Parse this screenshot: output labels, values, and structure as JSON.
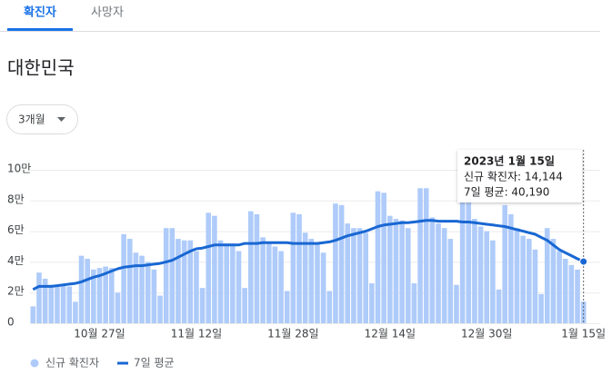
{
  "tabs": [
    "확진자",
    "사망자"
  ],
  "region": "대한민국",
  "range_selector": "3개월",
  "chart_data": {
    "type": "bar",
    "categories": [
      null,
      null,
      null,
      null,
      null,
      null,
      null,
      null,
      null,
      null,
      null,
      "10월 27일",
      null,
      null,
      null,
      null,
      null,
      null,
      null,
      null,
      null,
      null,
      null,
      null,
      null,
      null,
      null,
      "11월 12일",
      null,
      null,
      null,
      null,
      null,
      null,
      null,
      null,
      null,
      null,
      null,
      null,
      null,
      null,
      null,
      "11월 28일",
      null,
      null,
      null,
      null,
      null,
      null,
      null,
      null,
      null,
      null,
      null,
      null,
      null,
      null,
      null,
      "12월 14일",
      null,
      null,
      null,
      null,
      null,
      null,
      null,
      null,
      null,
      null,
      null,
      null,
      null,
      null,
      null,
      "12월 30일",
      null,
      null,
      null,
      null,
      null,
      null,
      null,
      null,
      null,
      null,
      null,
      null,
      null,
      null,
      null,
      "1월 15일"
    ],
    "series": [
      {
        "name": "신규 확진자",
        "type": "bar",
        "color": "#aecbfa",
        "values": [
          11000,
          33000,
          29000,
          25000,
          24000,
          25000,
          24000,
          14000,
          44000,
          42000,
          35000,
          36000,
          37000,
          36000,
          20000,
          58000,
          55000,
          46000,
          44000,
          40000,
          35000,
          18000,
          62000,
          62000,
          55000,
          54000,
          54000,
          47000,
          23000,
          72000,
          70000,
          54000,
          52000,
          52000,
          47000,
          23000,
          73000,
          71000,
          56000,
          53000,
          50000,
          47000,
          21000,
          72000,
          71000,
          59000,
          55000,
          52000,
          46000,
          21000,
          78000,
          77000,
          65000,
          62000,
          62000,
          59000,
          26000,
          86000,
          85000,
          70000,
          68000,
          67000,
          62000,
          26000,
          88000,
          88000,
          69000,
          65000,
          62000,
          55000,
          25000,
          85000,
          82000,
          68000,
          63000,
          60000,
          54000,
          22000,
          77000,
          71000,
          62000,
          57000,
          55000,
          48000,
          19000,
          62000,
          55000,
          47000,
          42000,
          38000,
          35000,
          14144
        ]
      },
      {
        "name": "7일 평균",
        "type": "line",
        "color": "#1967d2",
        "values": [
          22000,
          24000,
          24000,
          24000,
          24500,
          25000,
          25500,
          26000,
          27000,
          28500,
          30000,
          31000,
          32500,
          34000,
          35500,
          36500,
          37000,
          37500,
          37500,
          38000,
          38500,
          39000,
          40000,
          41000,
          43000,
          45000,
          47000,
          48500,
          49000,
          50000,
          51000,
          51000,
          51000,
          51000,
          51000,
          52000,
          52000,
          52000,
          52500,
          52500,
          52500,
          52500,
          52500,
          52000,
          52000,
          52000,
          52000,
          52000,
          52500,
          53000,
          54000,
          55500,
          57000,
          58000,
          59000,
          60000,
          61500,
          63000,
          64000,
          64500,
          65000,
          65500,
          65500,
          66000,
          66500,
          67000,
          67000,
          66500,
          66500,
          66500,
          66500,
          66000,
          66000,
          65500,
          65000,
          64500,
          64000,
          63500,
          63000,
          62000,
          61000,
          60000,
          59000,
          58000,
          56000,
          54000,
          51000,
          48000,
          46000,
          44000,
          42000,
          40190
        ]
      }
    ],
    "ylim": [
      0,
      100000
    ],
    "yticks": [
      0,
      {
        "value": 20000,
        "label": "2만"
      },
      {
        "value": 40000,
        "label": "4만"
      },
      {
        "value": 60000,
        "label": "6만"
      },
      {
        "value": 80000,
        "label": "8만"
      },
      {
        "value": 100000,
        "label": "10만"
      }
    ],
    "grid": true,
    "legend": "bottom-left",
    "tooltip": {
      "date": "2023년 1월 15일",
      "lines": [
        "신규 확진자: 14,144",
        "7일 평균: 40,190"
      ]
    }
  }
}
